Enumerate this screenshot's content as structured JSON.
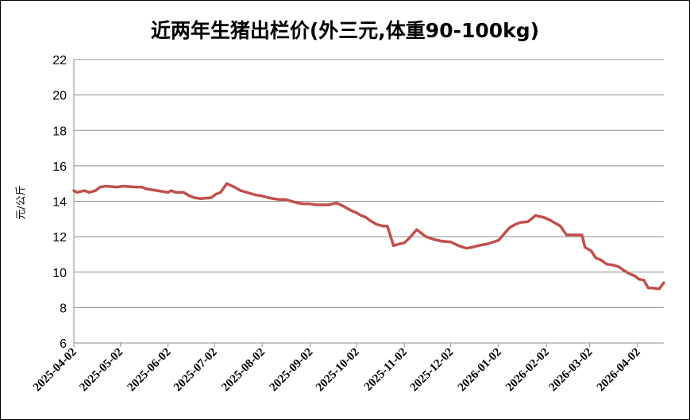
{
  "chart_data": {
    "type": "line",
    "title": "近两年生猪出栏价(外三元,体重90-100kg)",
    "xlabel": "",
    "ylabel": "元/公斤",
    "ylim": [
      6,
      22
    ],
    "yticks": [
      6,
      8,
      10,
      12,
      14,
      16,
      18,
      20,
      22
    ],
    "xticks": [
      "2025-04-02",
      "2025-05-02",
      "2025-06-02",
      "2025-07-02",
      "2025-08-02",
      "2025-09-02",
      "2025-10-02",
      "2025-11-02",
      "2025-12-02",
      "2026-01-02",
      "2026-02-02",
      "2026-03-02",
      "2026-04-02"
    ],
    "xlim": [
      "2025-04-02",
      "2026-04-19"
    ],
    "grid": {
      "horizontal": true,
      "vertical": false
    },
    "legend": "none",
    "line_color": "#C0504D",
    "series": [
      {
        "x": [
          "2025-04-02",
          "2025-04-04",
          "2025-04-09",
          "2025-04-12",
          "2025-04-16",
          "2025-04-19",
          "2025-04-23",
          "2025-04-30",
          "2025-05-04",
          "2025-05-12",
          "2025-05-16",
          "2025-05-19",
          "2025-05-26",
          "2025-06-02",
          "2025-06-04",
          "2025-06-07",
          "2025-06-12",
          "2025-06-16",
          "2025-06-19",
          "2025-06-23",
          "2025-06-30",
          "2025-07-03",
          "2025-07-06",
          "2025-07-10",
          "2025-07-15",
          "2025-07-19",
          "2025-07-23",
          "2025-07-29",
          "2025-08-02",
          "2025-08-06",
          "2025-08-09",
          "2025-08-13",
          "2025-08-17",
          "2025-08-25",
          "2025-08-29",
          "2025-09-02",
          "2025-09-06",
          "2025-09-09",
          "2025-09-14",
          "2025-09-19",
          "2025-09-23",
          "2025-09-28",
          "2025-10-02",
          "2025-10-05",
          "2025-10-08",
          "2025-10-11",
          "2025-10-15",
          "2025-10-19",
          "2025-10-22",
          "2025-10-26",
          "2025-10-30",
          "2025-11-02",
          "2025-11-05",
          "2025-11-10",
          "2025-11-16",
          "2025-11-21",
          "2025-11-26",
          "2025-12-02",
          "2025-12-07",
          "2025-12-12",
          "2025-12-16",
          "2025-12-20",
          "2025-12-26",
          "2026-01-02",
          "2026-01-06",
          "2026-01-09",
          "2026-01-13",
          "2026-01-16",
          "2026-01-21",
          "2026-01-26",
          "2026-01-28",
          "2026-01-31",
          "2026-02-04",
          "2026-02-07",
          "2026-02-11",
          "2026-02-15",
          "2026-02-19",
          "2026-02-21",
          "2026-02-25",
          "2026-02-27",
          "2026-03-03",
          "2026-03-06",
          "2026-03-09",
          "2026-03-13",
          "2026-03-17",
          "2026-03-21",
          "2026-03-24",
          "2026-03-28",
          "2026-03-31",
          "2026-04-03",
          "2026-04-06",
          "2026-04-09",
          "2026-04-12",
          "2026-04-16",
          "2026-04-19"
        ],
        "values": [
          14.6,
          14.5,
          14.6,
          14.5,
          14.6,
          14.8,
          14.85,
          14.8,
          14.85,
          14.8,
          14.8,
          14.7,
          14.6,
          14.5,
          14.6,
          14.5,
          14.5,
          14.3,
          14.2,
          14.15,
          14.2,
          14.4,
          14.5,
          15.0,
          14.8,
          14.6,
          14.5,
          14.35,
          14.3,
          14.2,
          14.15,
          14.1,
          14.1,
          13.9,
          13.85,
          13.85,
          13.8,
          13.8,
          13.8,
          13.9,
          13.75,
          13.5,
          13.35,
          13.2,
          13.1,
          12.9,
          12.7,
          12.6,
          12.6,
          11.5,
          11.6,
          11.65,
          11.9,
          12.4,
          12.0,
          11.85,
          11.75,
          11.7,
          11.5,
          11.35,
          11.4,
          11.5,
          11.6,
          11.8,
          12.2,
          12.5,
          12.7,
          12.8,
          12.85,
          13.2,
          13.15,
          13.1,
          12.95,
          12.8,
          12.6,
          12.1,
          12.1,
          12.1,
          12.1,
          11.4,
          11.2,
          10.8,
          10.7,
          10.45,
          10.4,
          10.3,
          10.1,
          9.9,
          9.8,
          9.6,
          9.55,
          9.1,
          9.1,
          9.05,
          9.4
        ]
      }
    ]
  }
}
